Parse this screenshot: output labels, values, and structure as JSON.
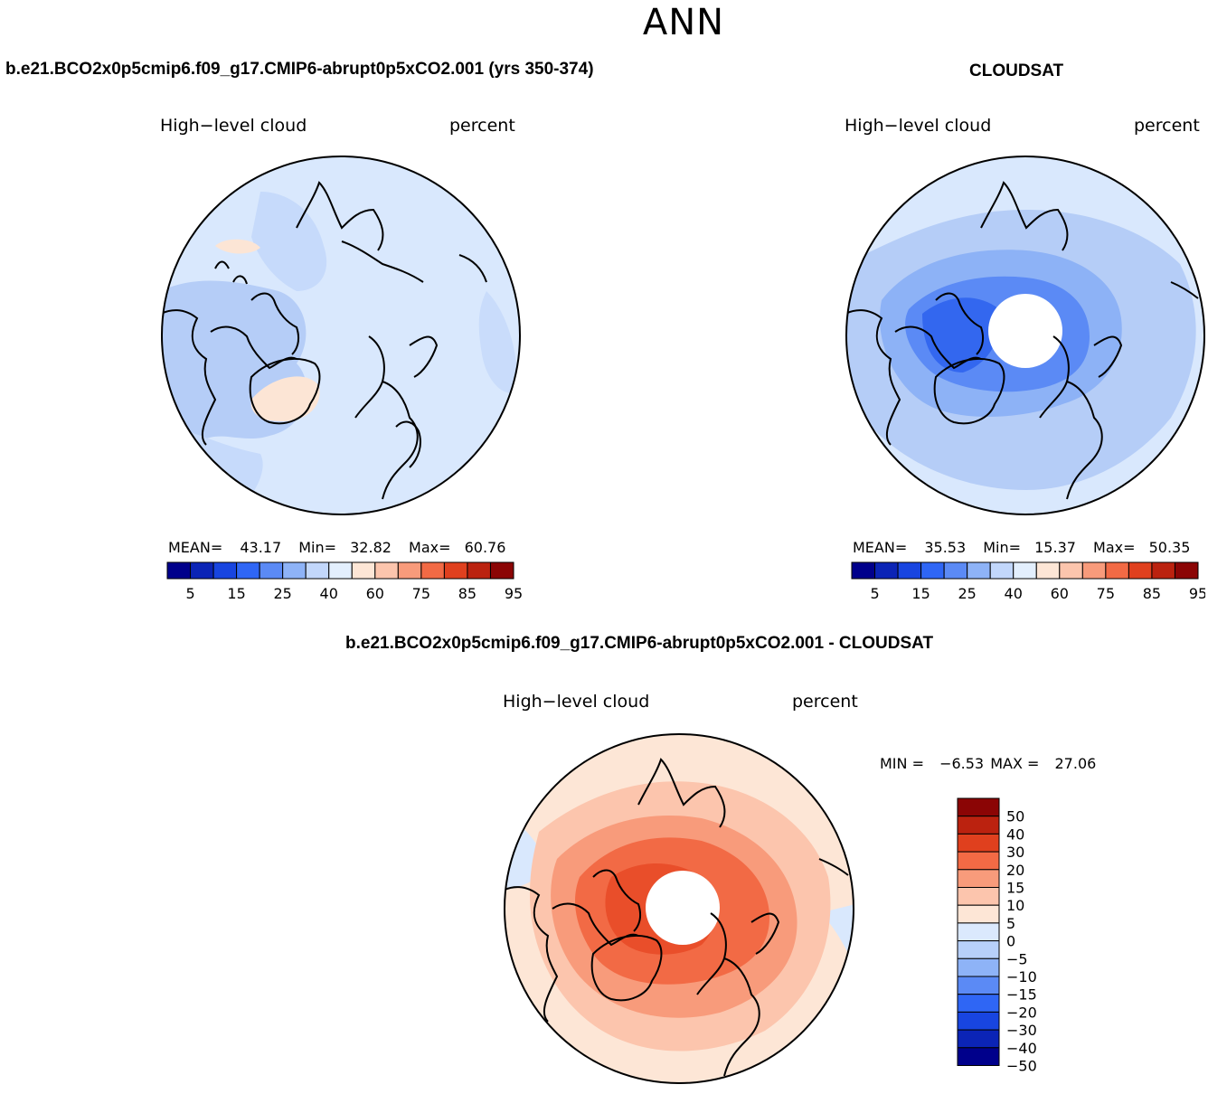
{
  "figure": {
    "season": "ANN",
    "colors": {
      "cb_abs": [
        "#00008b",
        "#0b24b6",
        "#1845e0",
        "#2f66f5",
        "#5b8af5",
        "#8eb3f7",
        "#c2d7fb",
        "#e3effd",
        "#fde6d6",
        "#fcc5ad",
        "#f89b7b",
        "#f26a45",
        "#e0401e",
        "#bb220f",
        "#8b0505"
      ],
      "cb_diff": [
        "#00008b",
        "#0b24b6",
        "#1845e0",
        "#2f66f5",
        "#5b8af5",
        "#8eb3f7",
        "#b7d0fa",
        "#dbe9fd",
        "#fde6d6",
        "#fcc5ad",
        "#f89b7b",
        "#f26a45",
        "#e0401e",
        "#bb220f",
        "#8b0505"
      ],
      "coast": "#000000"
    }
  },
  "panels": {
    "model": {
      "case_title": "b.e21.BCO2x0p5cmip6.f09_g17.CMIP6-abrupt0p5xCO2.001 (yrs 350-374)",
      "variable": "High−level cloud",
      "units": "percent",
      "stats": {
        "mean_label": "MEAN=",
        "mean": "43.17",
        "min_label": "Min=",
        "min": "32.82",
        "max_label": "Max=",
        "max": "60.76"
      },
      "colorbar": {
        "labels": [
          "5",
          "15",
          "25",
          "40",
          "60",
          "75",
          "85",
          "95"
        ]
      },
      "map": {
        "type": "polar_stereographic",
        "hemisphere": "north",
        "polar_mask": false
      }
    },
    "obs": {
      "case_title": "CLOUDSAT",
      "variable": "High−level cloud",
      "units": "percent",
      "stats": {
        "mean_label": "MEAN=",
        "mean": "35.53",
        "min_label": "Min=",
        "min": "15.37",
        "max_label": "Max=",
        "max": "50.35"
      },
      "colorbar": {
        "labels": [
          "5",
          "15",
          "25",
          "40",
          "60",
          "75",
          "85",
          "95"
        ]
      },
      "map": {
        "type": "polar_stereographic",
        "hemisphere": "north",
        "polar_mask": true
      }
    },
    "diff": {
      "case_title": "b.e21.BCO2x0p5cmip6.f09_g17.CMIP6-abrupt0p5xCO2.001 - CLOUDSAT",
      "variable": "High−level cloud",
      "units": "percent",
      "stats": {
        "min_label": "MIN =",
        "min": "−6.53",
        "max_label": "MAX =",
        "max": "27.06"
      },
      "colorbar": {
        "labels": [
          "50",
          "40",
          "30",
          "20",
          "15",
          "10",
          "5",
          "0",
          "−5",
          "−10",
          "−15",
          "−20",
          "−30",
          "−40",
          "−50"
        ]
      },
      "map": {
        "type": "polar_stereographic",
        "hemisphere": "north",
        "polar_mask": true
      }
    }
  }
}
